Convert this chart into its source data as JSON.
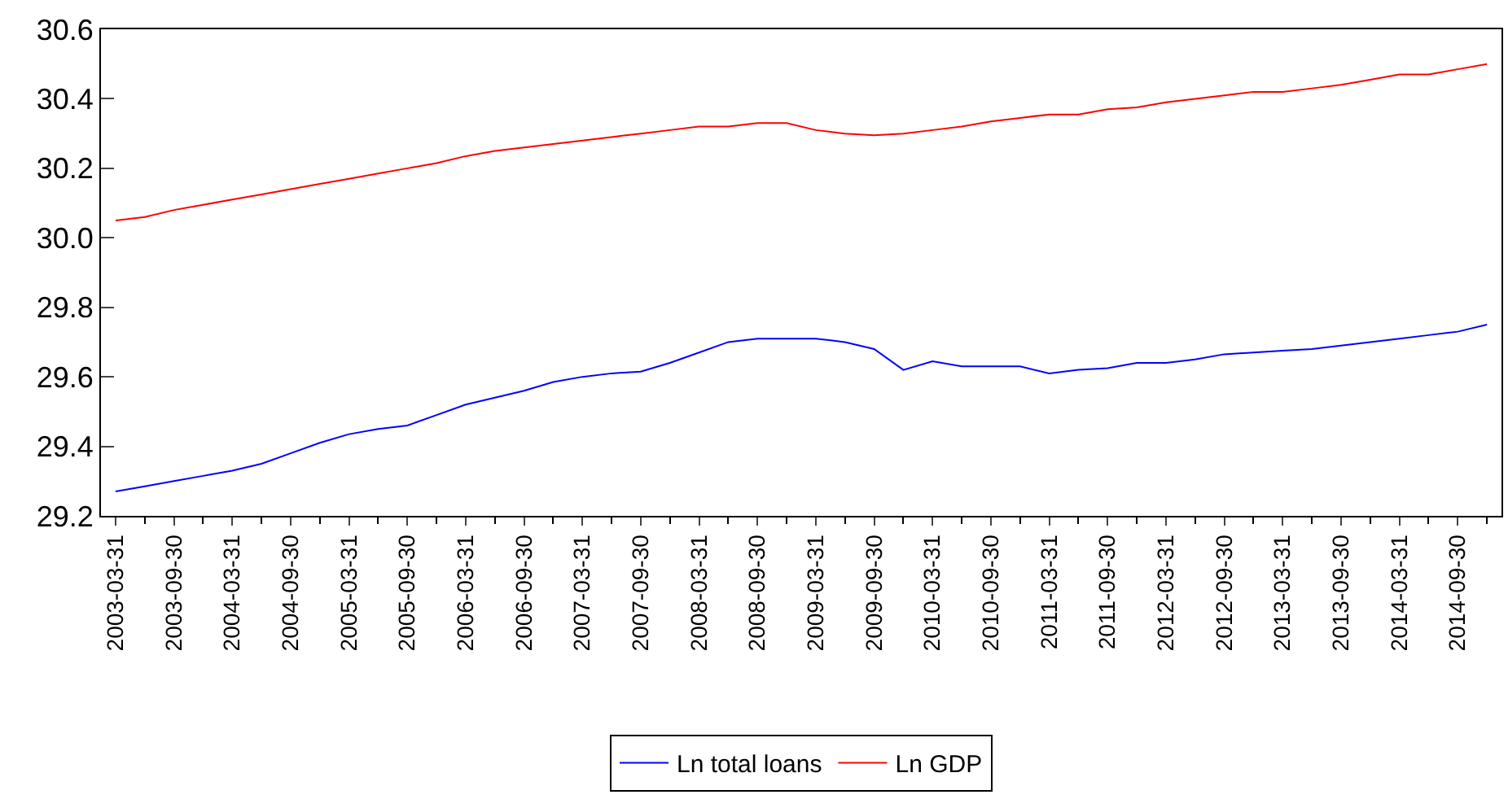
{
  "chart_data": {
    "type": "line",
    "categories": [
      "2003-03-31",
      null,
      "2003-09-30",
      null,
      "2004-03-31",
      null,
      "2004-09-30",
      null,
      "2005-03-31",
      null,
      "2005-09-30",
      null,
      "2006-03-31",
      null,
      "2006-09-30",
      null,
      "2007-03-31",
      null,
      "2007-09-30",
      null,
      "2008-03-31",
      null,
      "2008-09-30",
      null,
      "2009-03-31",
      null,
      "2009-09-30",
      null,
      "2010-03-31",
      null,
      "2010-09-30",
      null,
      "2011-03-31",
      null,
      "2011-09-30",
      null,
      "2012-03-31",
      null,
      "2012-09-30",
      null,
      "2013-03-31",
      null,
      "2013-09-30",
      null,
      "2014-03-31",
      null,
      "2014-09-30",
      null
    ],
    "series": [
      {
        "name": "Ln total loans",
        "color": "#0000ff",
        "values": [
          29.27,
          29.285,
          29.3,
          29.315,
          29.33,
          29.35,
          29.38,
          29.41,
          29.435,
          29.45,
          29.46,
          29.49,
          29.52,
          29.54,
          29.56,
          29.585,
          29.6,
          29.61,
          29.615,
          29.64,
          29.67,
          29.7,
          29.71,
          29.71,
          29.71,
          29.7,
          29.68,
          29.62,
          29.645,
          29.63,
          29.63,
          29.63,
          29.61,
          29.62,
          29.625,
          29.64,
          29.64,
          29.65,
          29.665,
          29.67,
          29.675,
          29.68,
          29.69,
          29.7,
          29.71,
          29.72,
          29.73,
          29.75
        ]
      },
      {
        "name": "Ln GDP",
        "color": "#ff0000",
        "values": [
          30.05,
          30.06,
          30.08,
          30.095,
          30.11,
          30.125,
          30.14,
          30.155,
          30.17,
          30.185,
          30.2,
          30.215,
          30.235,
          30.25,
          30.26,
          30.27,
          30.28,
          30.29,
          30.3,
          30.31,
          30.32,
          30.32,
          30.33,
          30.33,
          30.31,
          30.3,
          30.295,
          30.3,
          30.31,
          30.32,
          30.335,
          30.345,
          30.355,
          30.355,
          30.37,
          30.375,
          30.39,
          30.4,
          30.41,
          30.42,
          30.42,
          30.43,
          30.44,
          30.455,
          30.47,
          30.47,
          30.485,
          30.5
        ]
      }
    ],
    "ylim": [
      29.2,
      30.6
    ],
    "yticks": [
      29.2,
      29.4,
      29.6,
      29.8,
      {
        "value": 30.0,
        "label": "30.0"
      },
      30.2,
      30.4,
      30.6
    ],
    "legend": "bottom",
    "marker": "none",
    "line_style": "solid"
  }
}
